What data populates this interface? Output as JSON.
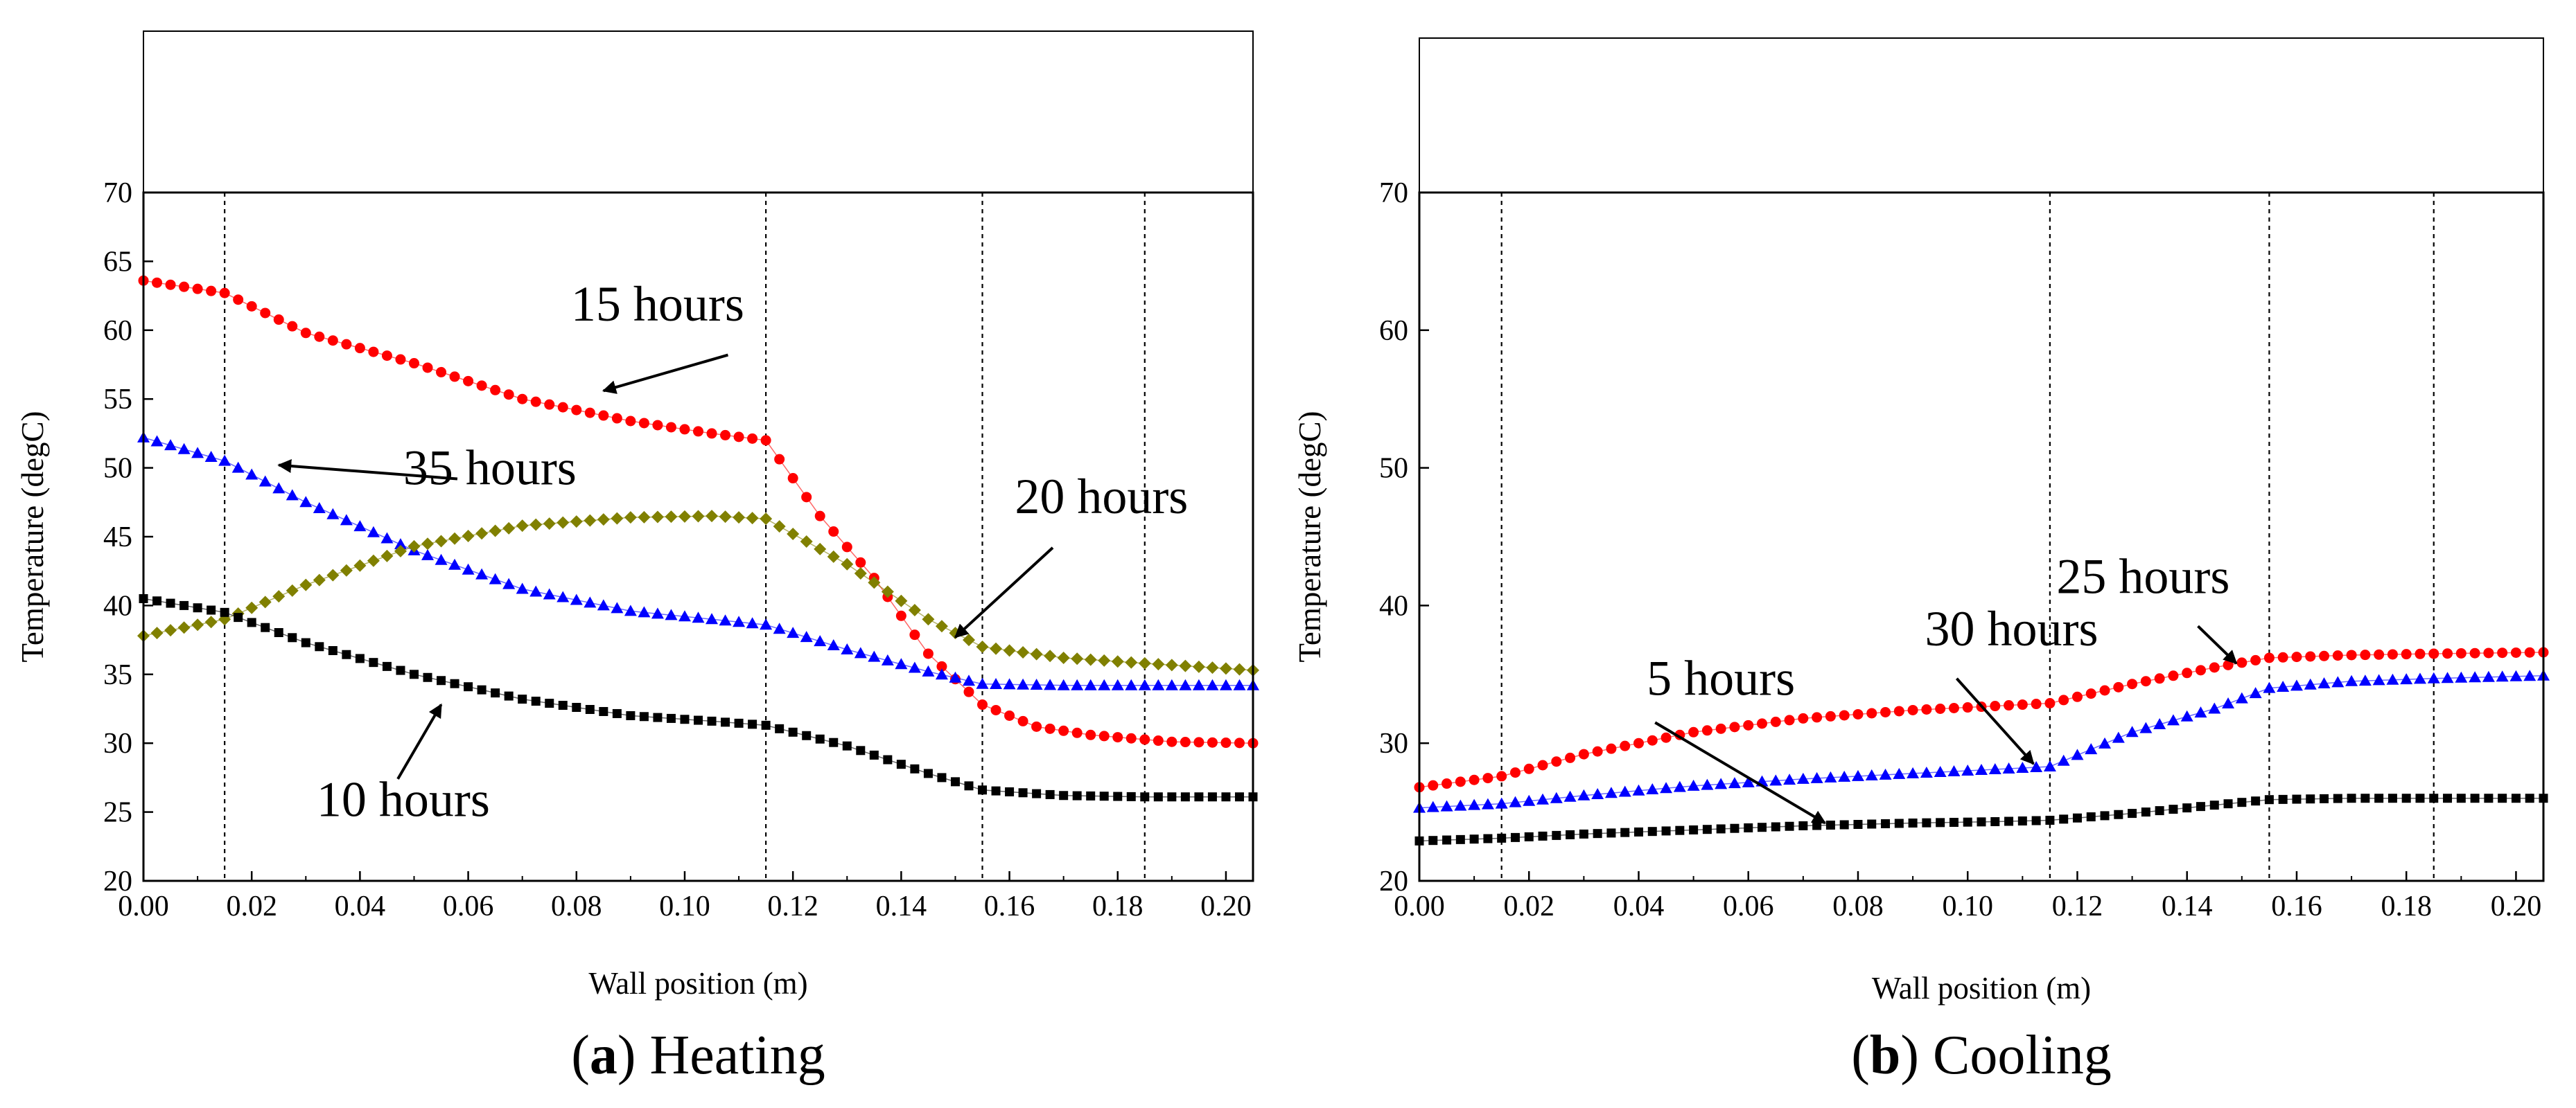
{
  "chart_data": [
    {
      "type": "scatter",
      "xlabel": "Wall position (m)",
      "ylabel": "Temperature (degC)",
      "xlim": [
        0.0,
        0.205
      ],
      "ylim": [
        20,
        70
      ],
      "xticks": [
        "0.00",
        "0.02",
        "0.04",
        "0.06",
        "0.08",
        "0.10",
        "0.12",
        "0.14",
        "0.16",
        "0.18",
        "0.20"
      ],
      "yticks": [
        "20",
        "25",
        "30",
        "35",
        "40",
        "45",
        "50",
        "55",
        "60",
        "65",
        "70"
      ],
      "layer_boundaries": [
        0.015,
        0.115,
        0.155,
        0.185
      ],
      "caption_letter": "a",
      "caption_text": "Heating",
      "series": [
        {
          "marker": "circle",
          "color": "#ff0000",
          "points": [
            [
              0.0,
              63.6
            ],
            [
              0.015,
              62.7
            ],
            [
              0.03,
              59.8
            ],
            [
              0.05,
              57.6
            ],
            [
              0.07,
              55.0
            ],
            [
              0.09,
              53.4
            ],
            [
              0.105,
              52.5
            ],
            [
              0.115,
              52.0
            ],
            [
              0.125,
              46.5
            ],
            [
              0.135,
              42.0
            ],
            [
              0.145,
              36.5
            ],
            [
              0.155,
              32.8
            ],
            [
              0.165,
              31.2
            ],
            [
              0.175,
              30.6
            ],
            [
              0.19,
              30.1
            ],
            [
              0.205,
              30.0
            ]
          ]
        },
        {
          "marker": "triangle",
          "color": "#0000ff",
          "points": [
            [
              0.0,
              52.2
            ],
            [
              0.015,
              50.5
            ],
            [
              0.03,
              47.5
            ],
            [
              0.05,
              44.0
            ],
            [
              0.07,
              41.2
            ],
            [
              0.09,
              39.6
            ],
            [
              0.105,
              39.0
            ],
            [
              0.115,
              38.6
            ],
            [
              0.13,
              36.8
            ],
            [
              0.145,
              35.2
            ],
            [
              0.155,
              34.3
            ],
            [
              0.17,
              34.2
            ],
            [
              0.185,
              34.2
            ],
            [
              0.205,
              34.2
            ]
          ]
        },
        {
          "marker": "diamond",
          "color": "#808000",
          "points": [
            [
              0.0,
              37.8
            ],
            [
              0.015,
              39.0
            ],
            [
              0.03,
              41.5
            ],
            [
              0.05,
              44.3
            ],
            [
              0.07,
              45.8
            ],
            [
              0.09,
              46.4
            ],
            [
              0.105,
              46.5
            ],
            [
              0.115,
              46.3
            ],
            [
              0.13,
              43.0
            ],
            [
              0.145,
              39.0
            ],
            [
              0.155,
              37.0
            ],
            [
              0.17,
              36.2
            ],
            [
              0.185,
              35.8
            ],
            [
              0.205,
              35.3
            ]
          ]
        },
        {
          "marker": "square",
          "color": "#000000",
          "points": [
            [
              0.0,
              40.5
            ],
            [
              0.015,
              39.5
            ],
            [
              0.03,
              37.3
            ],
            [
              0.05,
              35.0
            ],
            [
              0.07,
              33.2
            ],
            [
              0.09,
              32.0
            ],
            [
              0.105,
              31.6
            ],
            [
              0.115,
              31.3
            ],
            [
              0.13,
              29.8
            ],
            [
              0.145,
              27.8
            ],
            [
              0.155,
              26.6
            ],
            [
              0.17,
              26.2
            ],
            [
              0.185,
              26.1
            ],
            [
              0.205,
              26.1
            ]
          ]
        }
      ],
      "annotations": [
        {
          "text": "15 hours",
          "x": 0.095,
          "y": 60.7,
          "tip": [
            0.085,
            55.6
          ]
        },
        {
          "text": "35 hours",
          "x": 0.064,
          "y": 48.8,
          "tip": [
            0.025,
            50.2
          ]
        },
        {
          "text": "20 hours",
          "x": 0.177,
          "y": 46.7,
          "tip": [
            0.15,
            37.7
          ]
        },
        {
          "text": "10 hours",
          "x": 0.048,
          "y": 24.7,
          "tip": [
            0.055,
            32.8
          ]
        }
      ]
    },
    {
      "type": "scatter",
      "xlabel": "Wall position (m)",
      "ylabel": "Temperature (degC)",
      "xlim": [
        0.0,
        0.205
      ],
      "ylim": [
        20,
        70
      ],
      "xticks": [
        "0.00",
        "0.02",
        "0.04",
        "0.06",
        "0.08",
        "0.10",
        "0.12",
        "0.14",
        "0.16",
        "0.18",
        "0.20"
      ],
      "yticks": [
        "20",
        "30",
        "40",
        "50",
        "60",
        "70"
      ],
      "layer_boundaries": [
        0.015,
        0.115,
        0.155,
        0.185
      ],
      "caption_letter": "b",
      "caption_text": "Cooling",
      "series": [
        {
          "marker": "circle",
          "color": "#ff0000",
          "points": [
            [
              0.0,
              26.8
            ],
            [
              0.015,
              27.6
            ],
            [
              0.03,
              29.2
            ],
            [
              0.05,
              30.8
            ],
            [
              0.07,
              31.8
            ],
            [
              0.09,
              32.4
            ],
            [
              0.105,
              32.7
            ],
            [
              0.115,
              32.9
            ],
            [
              0.13,
              34.3
            ],
            [
              0.145,
              35.5
            ],
            [
              0.155,
              36.2
            ],
            [
              0.17,
              36.4
            ],
            [
              0.185,
              36.5
            ],
            [
              0.205,
              36.6
            ]
          ]
        },
        {
          "marker": "triangle",
          "color": "#0000ff",
          "points": [
            [
              0.0,
              25.3
            ],
            [
              0.015,
              25.6
            ],
            [
              0.03,
              26.2
            ],
            [
              0.05,
              26.9
            ],
            [
              0.07,
              27.4
            ],
            [
              0.09,
              27.8
            ],
            [
              0.105,
              28.1
            ],
            [
              0.115,
              28.3
            ],
            [
              0.13,
              30.8
            ],
            [
              0.145,
              32.5
            ],
            [
              0.155,
              34.0
            ],
            [
              0.17,
              34.5
            ],
            [
              0.185,
              34.7
            ],
            [
              0.205,
              34.9
            ]
          ]
        },
        {
          "marker": "square",
          "color": "#000000",
          "points": [
            [
              0.0,
              22.9
            ],
            [
              0.015,
              23.1
            ],
            [
              0.03,
              23.4
            ],
            [
              0.05,
              23.7
            ],
            [
              0.07,
              24.0
            ],
            [
              0.09,
              24.2
            ],
            [
              0.105,
              24.3
            ],
            [
              0.115,
              24.4
            ],
            [
              0.13,
              24.9
            ],
            [
              0.145,
              25.5
            ],
            [
              0.155,
              25.9
            ],
            [
              0.17,
              26.0
            ],
            [
              0.185,
              26.0
            ],
            [
              0.205,
              26.0
            ]
          ]
        }
      ],
      "annotations": [
        {
          "text": "25 hours",
          "x": 0.132,
          "y": 40.9,
          "tip": [
            0.149,
            35.8
          ]
        },
        {
          "text": "30 hours",
          "x": 0.108,
          "y": 37.1,
          "tip": [
            0.112,
            28.5
          ]
        },
        {
          "text": "5 hours",
          "x": 0.055,
          "y": 33.5,
          "tip": [
            0.074,
            24.2
          ]
        }
      ]
    }
  ]
}
